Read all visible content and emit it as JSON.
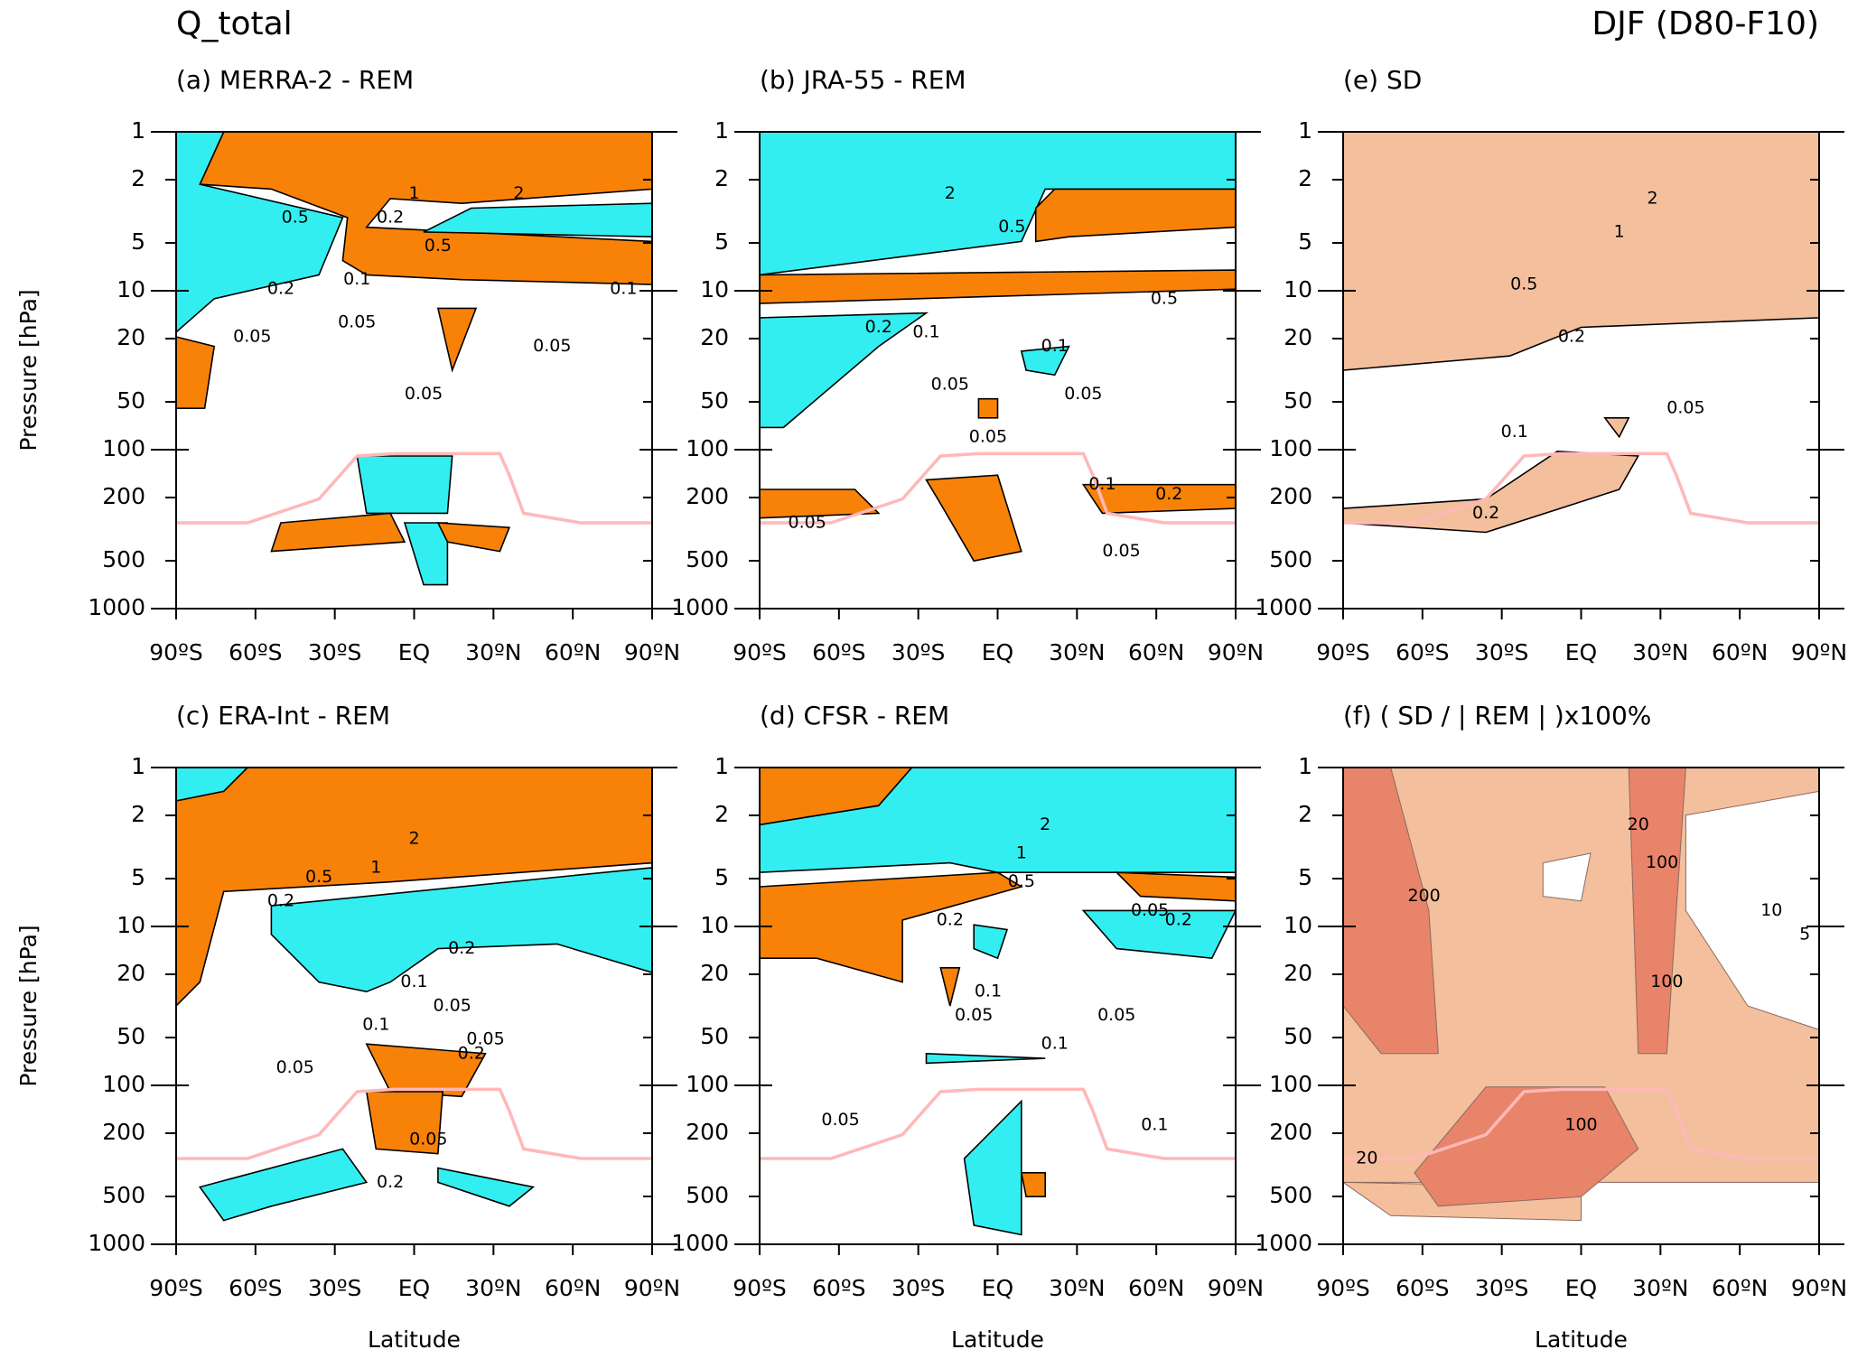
{
  "header": {
    "left": "Q_total",
    "right": "DJF (D80-F10)"
  },
  "chart_data": [
    {
      "type": "contour",
      "title": "(a) MERRA-2 - REM",
      "xlim": [
        -90,
        90
      ],
      "xticks": [
        {
          "value": -90,
          "label": "90ºS"
        },
        {
          "value": -60,
          "label": "60ºS"
        },
        {
          "value": -30,
          "label": "30ºS"
        },
        {
          "value": 0,
          "label": "EQ"
        },
        {
          "value": 30,
          "label": "30ºN"
        },
        {
          "value": 60,
          "label": "60ºN"
        },
        {
          "value": 90,
          "label": "90ºN"
        }
      ],
      "ylim": [
        1000,
        1
      ],
      "ylog": true,
      "yticks": [
        1,
        2,
        5,
        10,
        20,
        50,
        100,
        200,
        500,
        1000
      ],
      "ylabel": "Pressure [hPa]",
      "contour_labels": [
        1,
        0.5,
        0.2,
        0.5,
        0.2,
        0.1,
        0.05,
        0.05,
        0.05,
        0.05,
        0.1,
        2
      ]
    },
    {
      "type": "contour",
      "title": "(b) JRA-55 - REM",
      "xlim": [
        -90,
        90
      ],
      "xticks": [
        {
          "value": -90,
          "label": "90ºS"
        },
        {
          "value": -60,
          "label": "60ºS"
        },
        {
          "value": -30,
          "label": "30ºS"
        },
        {
          "value": 0,
          "label": "EQ"
        },
        {
          "value": 30,
          "label": "30ºN"
        },
        {
          "value": 60,
          "label": "60ºN"
        },
        {
          "value": 90,
          "label": "90ºN"
        }
      ],
      "ylim": [
        1000,
        1
      ],
      "ylog": true,
      "yticks": [
        1,
        2,
        5,
        10,
        20,
        50,
        100,
        200,
        500,
        1000
      ],
      "contour_labels": [
        2,
        0.5,
        0.5,
        0.2,
        0.1,
        0.05,
        0.05,
        0.05,
        0.1,
        0.1,
        0.2,
        0.05,
        0.05
      ]
    },
    {
      "type": "contour",
      "title": "(e) SD",
      "xlim": [
        -90,
        90
      ],
      "xticks": [
        {
          "value": -90,
          "label": "90ºS"
        },
        {
          "value": -60,
          "label": "60ºS"
        },
        {
          "value": -30,
          "label": "30ºS"
        },
        {
          "value": 0,
          "label": "EQ"
        },
        {
          "value": 30,
          "label": "30ºN"
        },
        {
          "value": 60,
          "label": "60ºN"
        },
        {
          "value": 90,
          "label": "90ºN"
        }
      ],
      "ylim": [
        1000,
        1
      ],
      "ylog": true,
      "yticks": [
        1,
        2,
        5,
        10,
        20,
        50,
        100,
        200,
        500,
        1000
      ],
      "contour_labels": [
        2,
        1,
        0.5,
        0.2,
        0.1,
        0.05,
        0.2
      ]
    },
    {
      "type": "contour",
      "title": "(c) ERA-Int - REM",
      "xlim": [
        -90,
        90
      ],
      "xticks": [
        {
          "value": -90,
          "label": "90ºS"
        },
        {
          "value": -60,
          "label": "60ºS"
        },
        {
          "value": -30,
          "label": "30ºS"
        },
        {
          "value": 0,
          "label": "EQ"
        },
        {
          "value": 30,
          "label": "30ºN"
        },
        {
          "value": 60,
          "label": "60ºN"
        },
        {
          "value": 90,
          "label": "90ºN"
        }
      ],
      "ylim": [
        1000,
        1
      ],
      "ylog": true,
      "yticks": [
        1,
        2,
        5,
        10,
        20,
        50,
        100,
        200,
        500,
        1000
      ],
      "ylabel": "Pressure [hPa]",
      "xlabel": "Latitude",
      "contour_labels": [
        2,
        1,
        0.5,
        0.2,
        0.2,
        0.1,
        0.05,
        0.05,
        0.1,
        0.2,
        0.05,
        0.05,
        0.2
      ]
    },
    {
      "type": "contour",
      "title": "(d) CFSR - REM",
      "xlim": [
        -90,
        90
      ],
      "xticks": [
        {
          "value": -90,
          "label": "90ºS"
        },
        {
          "value": -60,
          "label": "60ºS"
        },
        {
          "value": -30,
          "label": "30ºS"
        },
        {
          "value": 0,
          "label": "EQ"
        },
        {
          "value": 30,
          "label": "30ºN"
        },
        {
          "value": 60,
          "label": "60ºN"
        },
        {
          "value": 90,
          "label": "90ºN"
        }
      ],
      "ylim": [
        1000,
        1
      ],
      "ylog": true,
      "yticks": [
        1,
        2,
        5,
        10,
        20,
        50,
        100,
        200,
        500,
        1000
      ],
      "xlabel": "Latitude",
      "contour_labels": [
        2,
        1,
        0.5,
        0.05,
        0.2,
        0.2,
        0.1,
        0.05,
        0.05,
        0.1,
        0.05,
        0.1
      ]
    },
    {
      "type": "contour",
      "title": "(f) ( SD / | REM | )x100%",
      "xlim": [
        -90,
        90
      ],
      "xticks": [
        {
          "value": -90,
          "label": "90ºS"
        },
        {
          "value": -60,
          "label": "60ºS"
        },
        {
          "value": -30,
          "label": "30ºS"
        },
        {
          "value": 0,
          "label": "EQ"
        },
        {
          "value": 30,
          "label": "30ºN"
        },
        {
          "value": 60,
          "label": "60ºN"
        },
        {
          "value": 90,
          "label": "90ºN"
        }
      ],
      "ylim": [
        1000,
        1
      ],
      "ylog": true,
      "yticks": [
        1,
        2,
        5,
        10,
        20,
        50,
        100,
        200,
        500,
        1000
      ],
      "xlabel": "Latitude",
      "contour_labels": [
        20,
        200,
        10,
        5,
        100,
        100,
        20,
        100
      ]
    }
  ]
}
